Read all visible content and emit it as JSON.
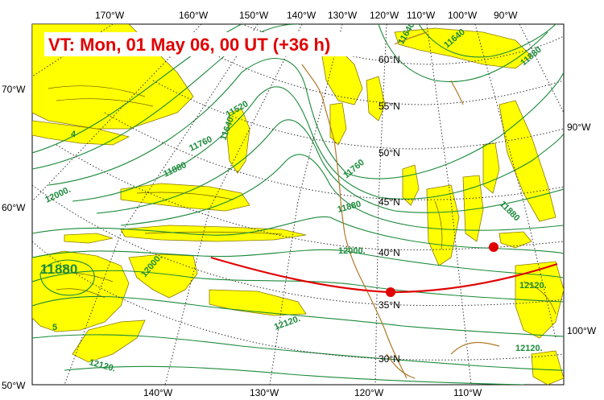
{
  "title": "VT:  Mon, 01 May 06, 00 UT (+36 h)",
  "colors": {
    "contour": "#1b8a3a",
    "fill_light": "#ffff00",
    "fill_outline": "#8a7a00",
    "coast": "#b07a2a",
    "track": "#e00000",
    "grid": "#333333"
  },
  "top_lon_labels": [
    "170°W",
    "160°W",
    "150°W",
    "140°W",
    "130°W",
    "120°W",
    "110°W",
    "100°W",
    "90°W"
  ],
  "bottom_lon_labels": [
    "140°W",
    "130°W",
    "120°W",
    "110°W"
  ],
  "left_lat_labels": [
    "70°W",
    "60°W",
    "50°W"
  ],
  "right_labels": [
    "90°W",
    "100°W"
  ],
  "inner_lat_labels": [
    "60°N",
    "55°N",
    "50°N",
    "45°N",
    "40°N",
    "35°N",
    "30°N"
  ],
  "contour_labels": [
    "11520",
    "11640",
    "11760",
    "11880",
    "12000.",
    "11880",
    "11640",
    "11760",
    "11880",
    "11880",
    "12000.",
    "12000.",
    "12120.",
    "12120.",
    "12120.",
    "11520",
    "11640",
    "11760",
    "11880",
    "11880",
    "12120.",
    "4",
    "5",
    "11640"
  ],
  "low_label": "11880"
}
